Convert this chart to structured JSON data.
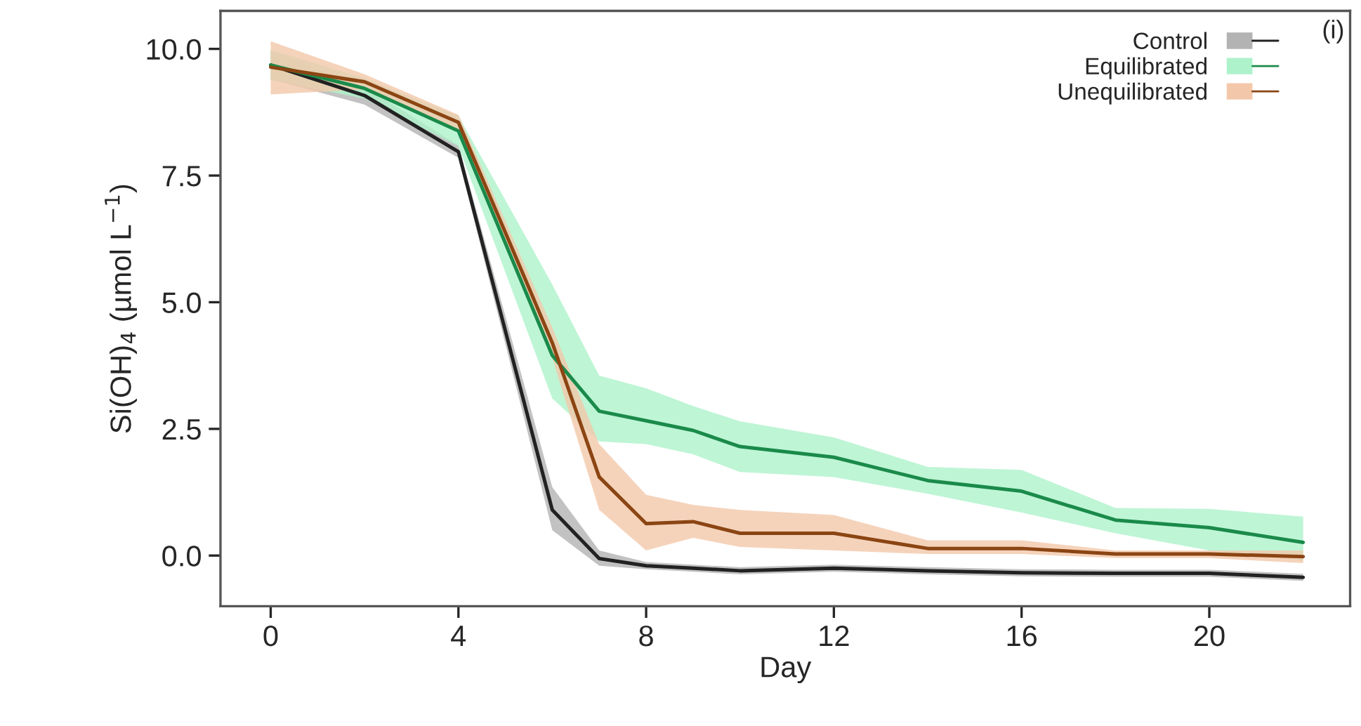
{
  "chart_data": {
    "type": "line",
    "xlabel": "Day",
    "ylabel": "Si(OH)$_{4}$ (µmol L$^{−1}$)",
    "annotations": [
      "(i)"
    ],
    "x": [
      0,
      2,
      4,
      6,
      7,
      8,
      9,
      10,
      12,
      14,
      16,
      18,
      20,
      22
    ],
    "series": [
      {
        "name": "Control",
        "color": "#222222",
        "values": [
          9.68,
          9.08,
          7.97,
          0.9,
          -0.06,
          -0.2,
          -0.25,
          -0.3,
          -0.25,
          -0.3,
          -0.34,
          -0.35,
          -0.35,
          -0.43
        ],
        "lower": [
          9.4,
          8.9,
          7.85,
          0.5,
          -0.2,
          -0.27,
          -0.32,
          -0.37,
          -0.32,
          -0.37,
          -0.41,
          -0.42,
          -0.42,
          -0.5
        ],
        "upper": [
          9.95,
          9.25,
          8.1,
          1.35,
          0.1,
          -0.13,
          -0.18,
          -0.23,
          -0.18,
          -0.23,
          -0.27,
          -0.28,
          -0.28,
          -0.36
        ]
      },
      {
        "name": "Equilibrated",
        "color": "#1a8a4a",
        "values": [
          9.68,
          9.22,
          8.38,
          3.95,
          2.85,
          2.66,
          2.47,
          2.15,
          1.94,
          1.48,
          1.27,
          0.7,
          0.55,
          0.26
        ],
        "lower": [
          9.38,
          9.02,
          8.08,
          3.1,
          2.25,
          2.2,
          2.0,
          1.65,
          1.55,
          1.22,
          0.85,
          0.44,
          0.1,
          -0.1
        ],
        "upper": [
          9.98,
          9.42,
          8.68,
          5.35,
          3.55,
          3.3,
          2.95,
          2.65,
          2.33,
          1.75,
          1.69,
          0.94,
          0.92,
          0.77
        ]
      },
      {
        "name": "Unequilibrated",
        "color": "#8b4513",
        "values": [
          9.64,
          9.35,
          8.55,
          4.2,
          1.55,
          0.63,
          0.67,
          0.44,
          0.44,
          0.14,
          0.14,
          0.03,
          0.03,
          -0.02
        ],
        "lower": [
          9.1,
          9.2,
          8.4,
          3.9,
          0.9,
          0.1,
          0.35,
          0.17,
          0.1,
          0.03,
          0.03,
          -0.05,
          -0.05,
          -0.15
        ],
        "upper": [
          10.15,
          9.5,
          8.7,
          4.5,
          2.2,
          1.2,
          1.0,
          0.9,
          0.8,
          0.3,
          0.3,
          0.1,
          0.1,
          0.1
        ]
      }
    ],
    "xlim": [
      -1.07,
      23.0
    ],
    "ylim": [
      -1.0,
      10.75
    ],
    "xticks": [
      0,
      4,
      8,
      12,
      16,
      20
    ],
    "yticks": [
      {
        "value": 0,
        "label": "0.0"
      },
      {
        "value": 2.5,
        "label": "2.5"
      },
      {
        "value": 5,
        "label": "5.0"
      },
      {
        "value": 7.5,
        "label": "7.5"
      },
      {
        "value": 10,
        "label": "10.0"
      }
    ],
    "legend": "top right",
    "grid": false,
    "marker": "none",
    "line_style": "solid"
  }
}
